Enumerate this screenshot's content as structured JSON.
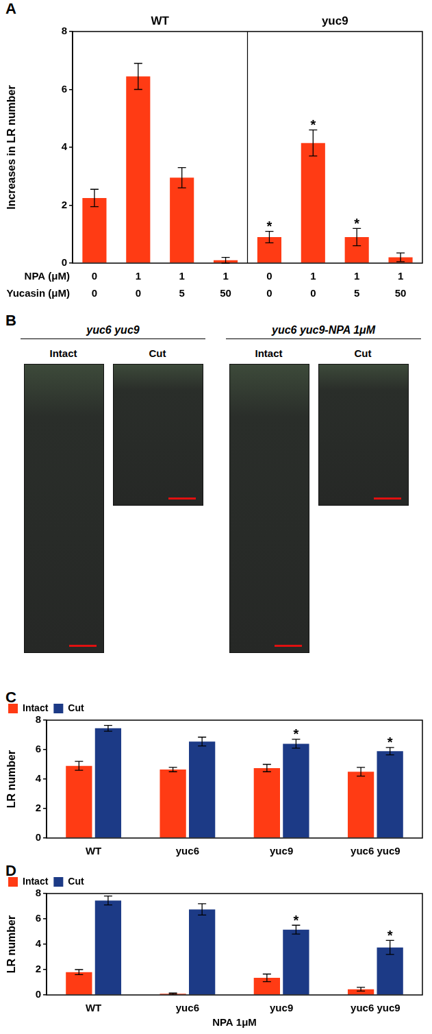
{
  "chart_data": [
    {
      "panel": "A",
      "type": "bar",
      "y_label": "Increases in LR number",
      "color": "#ff3b14",
      "groups": [
        {
          "name": "WT",
          "values": [
            2.25,
            6.45,
            2.95,
            0.1
          ],
          "errors": [
            0.3,
            0.45,
            0.35,
            0.1
          ],
          "significant": [
            false,
            false,
            false,
            false
          ]
        },
        {
          "name": "yuc9",
          "values": [
            0.9,
            4.15,
            0.9,
            0.2
          ],
          "errors": [
            0.2,
            0.45,
            0.3,
            0.15
          ],
          "significant": [
            true,
            true,
            true,
            false
          ]
        }
      ],
      "x_rows": [
        {
          "label": "NPA (μM)",
          "values": [
            0,
            1,
            1,
            1,
            0,
            1,
            1,
            1
          ]
        },
        {
          "label": "Yucasin (μM)",
          "values": [
            0,
            0,
            5,
            50,
            0,
            0,
            5,
            50
          ]
        }
      ],
      "annotation": "*",
      "ylim": [
        0,
        8
      ],
      "yticks": [
        0,
        2,
        4,
        6,
        8
      ],
      "legend": false
    },
    {
      "panel": "C",
      "type": "bar",
      "y_label": "LR number",
      "categories": [
        "WT",
        "yuc6",
        "yuc9",
        "yuc6 yuc9"
      ],
      "series": [
        {
          "name": "Intact",
          "color": "#ff3b14",
          "values": [
            4.9,
            4.65,
            4.75,
            4.5
          ],
          "errors": [
            0.3,
            0.15,
            0.25,
            0.3
          ],
          "significant": [
            false,
            false,
            false,
            false
          ]
        },
        {
          "name": "Cut",
          "color": "#1c3a86",
          "values": [
            7.45,
            6.55,
            6.4,
            5.9
          ],
          "errors": [
            0.2,
            0.3,
            0.3,
            0.25
          ],
          "significant": [
            false,
            false,
            true,
            true
          ]
        }
      ],
      "annotation": "*",
      "ylim": [
        0,
        8
      ],
      "yticks": [
        0,
        2,
        4,
        6,
        8
      ],
      "legend": "top-left"
    },
    {
      "panel": "D",
      "type": "bar",
      "y_label": "LR number",
      "x_label": "NPA 1μM",
      "categories": [
        "WT",
        "yuc6",
        "yuc9",
        "yuc6 yuc9"
      ],
      "series": [
        {
          "name": "Intact",
          "color": "#ff3b14",
          "values": [
            1.8,
            0.1,
            1.35,
            0.45
          ],
          "errors": [
            0.2,
            0.05,
            0.3,
            0.15
          ],
          "significant": [
            false,
            false,
            false,
            false
          ]
        },
        {
          "name": "Cut",
          "color": "#1c3a86",
          "values": [
            7.45,
            6.75,
            5.15,
            3.75
          ],
          "errors": [
            0.35,
            0.45,
            0.35,
            0.55
          ],
          "significant": [
            false,
            false,
            true,
            true
          ]
        }
      ],
      "annotation": "*",
      "ylim": [
        0,
        8
      ],
      "yticks": [
        0,
        2,
        4,
        6,
        8
      ],
      "legend": "top-left"
    }
  ],
  "photo_panel": {
    "panel": "B",
    "images": [
      {
        "title": "yuc6 yuc9",
        "parts": [
          "Intact",
          "Cut"
        ]
      },
      {
        "title": "yuc6 yuc9-NPA 1μM",
        "parts": [
          "Intact",
          "Cut"
        ]
      }
    ]
  }
}
